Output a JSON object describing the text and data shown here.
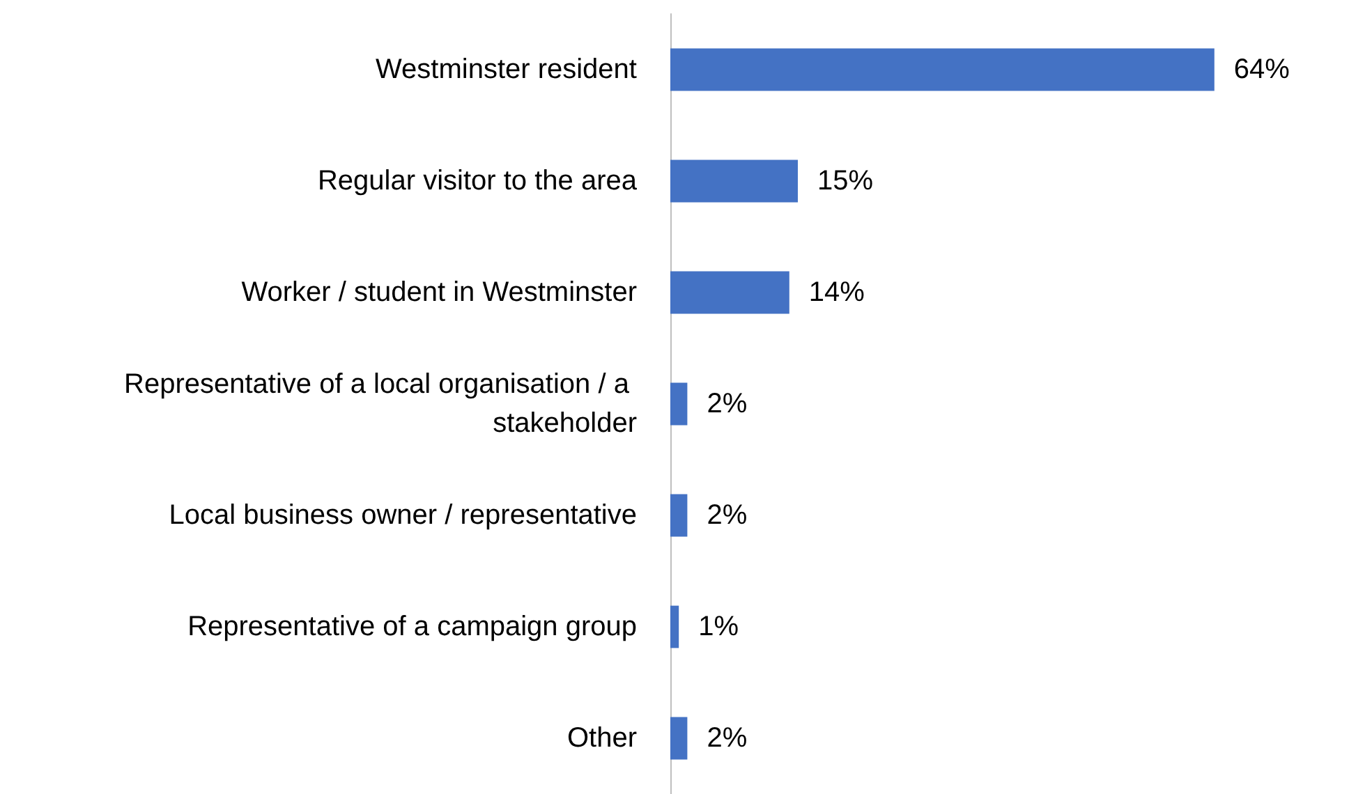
{
  "chart_data": {
    "type": "bar",
    "orientation": "horizontal",
    "categories": [
      "Westminster resident",
      "Regular visitor to the area",
      "Worker / student in Westminster",
      "Representative of a local organisation / a stakeholder",
      "Local business owner / representative",
      "Representative of a campaign group",
      "Other"
    ],
    "values": [
      64,
      15,
      14,
      2,
      2,
      1,
      2
    ],
    "value_labels": [
      "64%",
      "15%",
      "14%",
      "2%",
      "2%",
      "1%",
      "2%"
    ],
    "color": "#4472c4"
  }
}
